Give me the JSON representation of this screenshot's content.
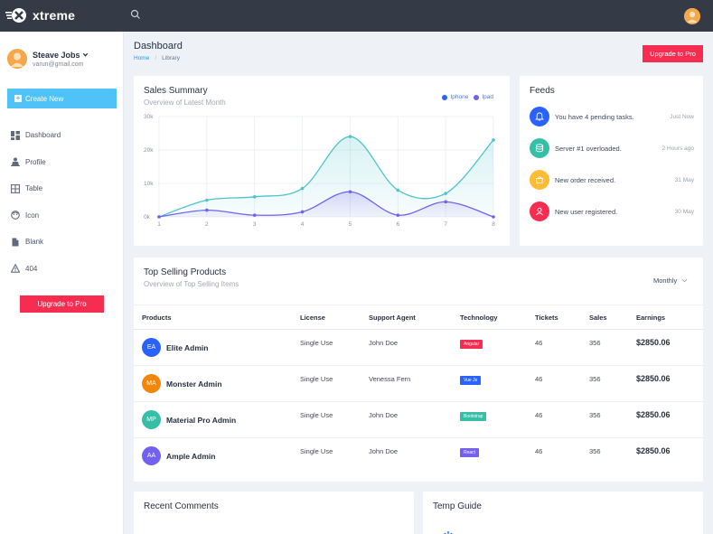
{
  "app": {
    "name": "xtreme"
  },
  "user": {
    "name": "Steave Jobs",
    "email": "varun@gmail.com"
  },
  "sidebar": {
    "create_label": "Create New",
    "items": [
      {
        "label": "Dashboard",
        "icon": "dashboard-icon"
      },
      {
        "label": "Profile",
        "icon": "profile-icon"
      },
      {
        "label": "Table",
        "icon": "table-icon"
      },
      {
        "label": "Icon",
        "icon": "face-icon"
      },
      {
        "label": "Blank",
        "icon": "file-icon"
      },
      {
        "label": "404",
        "icon": "alert-icon"
      }
    ],
    "upgrade_label": "Upgrade to Pro"
  },
  "header": {
    "title": "Dashboard",
    "breadcrumb": [
      "Home",
      "Library"
    ],
    "upgrade_label": "Upgrade to Pro"
  },
  "sales": {
    "title": "Sales Summary",
    "subtitle": "Overview of Latest Month",
    "chart_data": {
      "type": "area",
      "x": [
        1,
        2,
        3,
        4,
        5,
        6,
        7,
        8
      ],
      "series": [
        {
          "name": "Iphone",
          "color": "#4dc3cc",
          "values": [
            0,
            5000,
            6000,
            8500,
            24000,
            8000,
            7000,
            23000
          ]
        },
        {
          "name": "Ipad",
          "color": "#7460ee",
          "values": [
            0,
            2000,
            500,
            1500,
            7500,
            500,
            4500,
            0
          ]
        }
      ],
      "ylim": [
        0,
        30000
      ],
      "y_ticks": [
        "0k",
        "10k",
        "20k",
        "30k"
      ],
      "x_ticks": [
        "1",
        "2",
        "3",
        "4",
        "5",
        "6",
        "7",
        "8"
      ],
      "grid": true,
      "legend": "top-right",
      "legend_colors": [
        "#2962ff",
        "#7460ee"
      ]
    }
  },
  "feeds": {
    "title": "Feeds",
    "items": [
      {
        "text": "You have 4 pending tasks.",
        "time": "Just Now",
        "color": "#2962ff",
        "icon": "bell-icon"
      },
      {
        "text": "Server #1 overloaded.",
        "time": "2 Hours ago",
        "color": "#36bea6",
        "icon": "server-icon"
      },
      {
        "text": "New order received.",
        "time": "31 May",
        "color": "#ffbc34",
        "icon": "cart-icon"
      },
      {
        "text": "New user registered.",
        "time": "30 May",
        "color": "#f62d51",
        "icon": "user-icon"
      }
    ]
  },
  "products": {
    "title": "Top Selling Products",
    "subtitle": "Overview of Top Selling Items",
    "filter": "Monthly",
    "columns": [
      "Products",
      "License",
      "Support Agent",
      "Technology",
      "Tickets",
      "Sales",
      "Earnings"
    ],
    "rows": [
      {
        "initials": "EA",
        "avatar_color": "#2962ff",
        "name": "Elite Admin",
        "license": "Single Use",
        "agent": "John Doe",
        "tech": "Angular",
        "tech_color": "#f62d51",
        "tickets": "46",
        "sales": "356",
        "earnings": "$2850.06"
      },
      {
        "initials": "MA",
        "avatar_color": "#f1870a",
        "name": "Monster Admin",
        "license": "Single Use",
        "agent": "Venessa Fern",
        "tech": "Vue Js",
        "tech_color": "#2962ff",
        "tickets": "46",
        "sales": "356",
        "earnings": "$2850.06"
      },
      {
        "initials": "MP",
        "avatar_color": "#36bea6",
        "name": "Material Pro Admin",
        "license": "Single Use",
        "agent": "John Doe",
        "tech": "Bootstrap",
        "tech_color": "#36bea6",
        "tickets": "46",
        "sales": "356",
        "earnings": "$2850.06"
      },
      {
        "initials": "AA",
        "avatar_color": "#7460ee",
        "name": "Ample Admin",
        "license": "Single Use",
        "agent": "John Doe",
        "tech": "React",
        "tech_color": "#7460ee",
        "tickets": "46",
        "sales": "356",
        "earnings": "$2850.06"
      }
    ]
  },
  "comments": {
    "title": "Recent Comments"
  },
  "guide": {
    "title": "Temp Guide"
  }
}
